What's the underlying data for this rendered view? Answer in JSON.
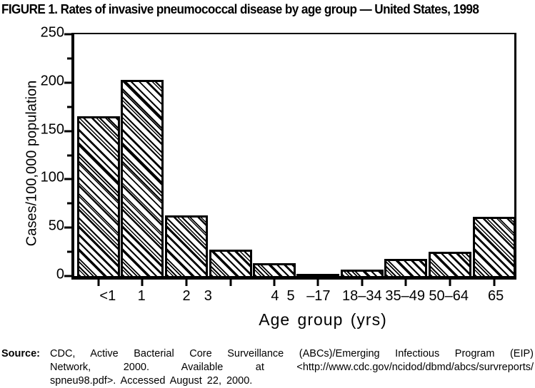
{
  "chart_data": {
    "type": "bar",
    "title": "FIGURE 1. Rates of invasive pneumococcal disease by age group — United States, 1998",
    "xlabel": "Age group (yrs)",
    "ylabel": "Cases/100,000 population",
    "ylim": [
      0,
      250
    ],
    "yticks_major": [
      0,
      50,
      100,
      150,
      200,
      250
    ],
    "yticks_minor": [
      25,
      75,
      125,
      175,
      225
    ],
    "categories": [
      "<1",
      "1",
      "2",
      "3",
      "4",
      "5–17",
      "18–34",
      "35–49",
      "50–64",
      "65"
    ],
    "values": [
      165,
      203,
      63,
      27,
      13,
      2,
      7,
      18,
      25,
      61
    ],
    "grid": false,
    "frame": true,
    "hatch": "diagonal-backslash",
    "layout": {
      "bar_tick_pct": [
        5.5,
        15.5,
        25.5,
        35.5,
        45.5,
        55.4,
        65.4,
        75.4,
        85.4,
        95.4
      ],
      "bar_width_pct": 9.74,
      "axis_labels": [
        {
          "text": "<1",
          "pct": 7.6
        },
        {
          "text": "1",
          "pct": 15.3
        },
        {
          "text": "2",
          "pct": 25.5
        },
        {
          "text": "3",
          "pct": 30.4
        },
        {
          "text": "4",
          "pct": 45.6
        },
        {
          "text": "5",
          "pct": 49.2
        },
        {
          "text": "–17",
          "pct": 55.5
        },
        {
          "text": "18–34",
          "pct": 65.4
        },
        {
          "text": "35–49",
          "pct": 75.2
        },
        {
          "text": "50–64",
          "pct": 85.1
        },
        {
          "text": "65",
          "pct": 95.8
        }
      ]
    }
  },
  "source": {
    "label": "Source:",
    "lines": [
      "CDC, Active Bacterial Core Surveillance (ABCs)/Emerging Infectious Program (EIP)",
      "Network, 2000. Available at <http://www.cdc.gov/ncidod/dbmd/abcs/survreports/",
      "spneu98.pdf>. Accessed August 22, 2000."
    ]
  },
  "colors": {
    "ink": "#000000",
    "paper": "#ffffff"
  }
}
